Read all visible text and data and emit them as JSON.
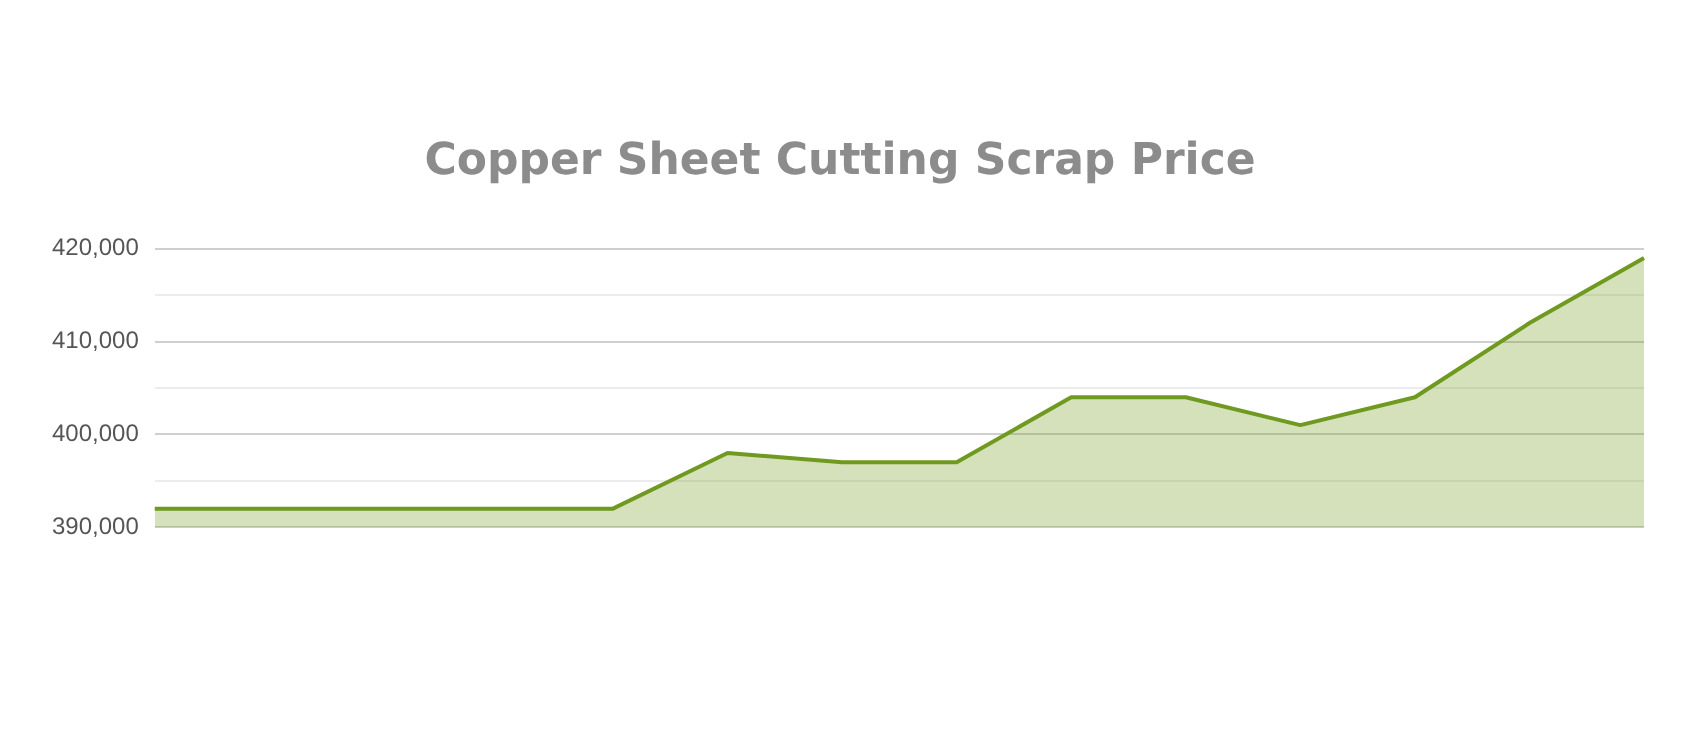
{
  "chart_data": {
    "type": "area",
    "title": "Copper Sheet Cutting Scrap Price",
    "categories": [
      null,
      null,
      null,
      null,
      null,
      null,
      null,
      null,
      null,
      null,
      null,
      null,
      null,
      null
    ],
    "series": [
      {
        "color": "#6f9a1f",
        "values": [
          392000,
          392000,
          392000,
          392000,
          392000,
          398000,
          397000,
          397000,
          404000,
          404000,
          401000,
          404000,
          412000,
          419000
        ]
      }
    ],
    "ylim": [
      390000,
      420000
    ],
    "yticks": [
      {
        "value": 390000,
        "label": "390,000"
      },
      {
        "value": 395000,
        "label": null
      },
      {
        "value": 400000,
        "label": "400,000"
      },
      {
        "value": 405000,
        "label": null
      },
      {
        "value": 410000,
        "label": "410,000"
      },
      {
        "value": 415000,
        "label": null
      },
      {
        "value": 420000,
        "label": "420,000"
      }
    ],
    "grid": "y",
    "legend": false
  }
}
